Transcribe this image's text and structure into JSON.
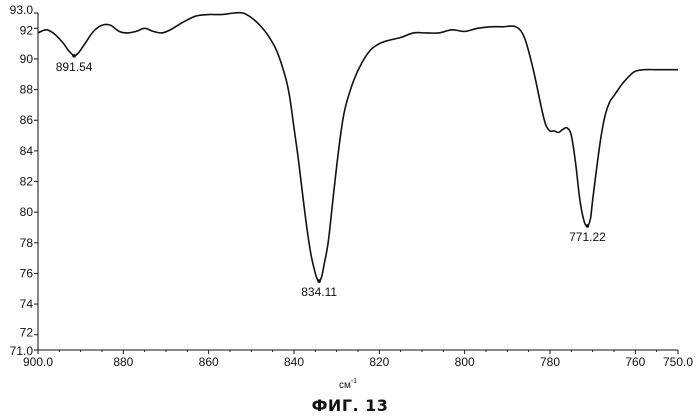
{
  "chart_data": {
    "type": "line",
    "xlabel": "см",
    "xlabel_sup": "-1",
    "caption": "ФИГ. 13",
    "xlim": [
      900.0,
      750.0
    ],
    "ylim": [
      71.0,
      93.0
    ],
    "x_reversed": true,
    "x_ticks": [
      "900.0",
      "880",
      "860",
      "840",
      "820",
      "800",
      "780",
      "760",
      "750.0"
    ],
    "y_ticks": [
      "71.0",
      "72",
      "74",
      "76",
      "78",
      "80",
      "82",
      "84",
      "86",
      "88",
      "90",
      "92",
      "93.0"
    ],
    "grid": false,
    "series": [
      {
        "x": [
          900.0,
          898.0,
          896.0,
          894.0,
          893.0,
          892.0,
          891.54,
          890.5,
          889.0,
          887.0,
          885.0,
          883.0,
          881.0,
          879.0,
          877.0,
          875.0,
          873.0,
          871.0,
          869.0,
          866.0,
          863.0,
          860.0,
          857.0,
          854.0,
          852.0,
          850.0,
          848.0,
          846.0,
          844.0,
          842.0,
          841.0,
          840.0,
          839.0,
          838.0,
          837.0,
          836.0,
          835.0,
          834.5,
          834.11,
          833.5,
          833.0,
          832.0,
          831.0,
          830.0,
          829.0,
          828.0,
          826.0,
          824.0,
          822.0,
          820.0,
          818.0,
          815.0,
          812.0,
          809.0,
          806.0,
          803.0,
          800.0,
          797.0,
          794.0,
          791.0,
          788.0,
          786.0,
          784.0,
          782.0,
          781.0,
          780.0,
          779.0,
          778.0,
          777.0,
          776.0,
          775.0,
          774.0,
          773.0,
          772.0,
          771.22,
          770.5,
          770.0,
          769.0,
          768.0,
          767.0,
          766.0,
          765.0,
          763.0,
          761.0,
          760.0,
          758.0,
          755.0,
          752.0,
          750.0
        ],
        "y": [
          91.7,
          91.9,
          91.6,
          91.0,
          90.6,
          90.3,
          90.2,
          90.4,
          91.0,
          91.8,
          92.2,
          92.2,
          91.8,
          91.7,
          91.8,
          92.0,
          91.8,
          91.7,
          91.9,
          92.4,
          92.8,
          92.9,
          92.9,
          93.0,
          93.0,
          92.7,
          92.2,
          91.5,
          90.5,
          88.8,
          87.5,
          85.5,
          83.5,
          81.2,
          79.0,
          77.2,
          76.0,
          75.6,
          75.5,
          75.8,
          76.5,
          78.0,
          80.5,
          83.0,
          85.2,
          86.8,
          88.6,
          89.8,
          90.6,
          91.0,
          91.2,
          91.4,
          91.7,
          91.7,
          91.7,
          91.9,
          91.8,
          92.0,
          92.1,
          92.1,
          92.1,
          91.4,
          89.4,
          86.8,
          85.7,
          85.3,
          85.3,
          85.2,
          85.4,
          85.5,
          85.0,
          83.2,
          80.8,
          79.4,
          79.1,
          79.6,
          80.8,
          83.0,
          85.0,
          86.4,
          87.2,
          87.6,
          88.4,
          89.0,
          89.2,
          89.3,
          89.3,
          89.3,
          89.3
        ]
      }
    ],
    "annotations": [
      {
        "x": 891.54,
        "y": 90.2,
        "text": "891.54"
      },
      {
        "x": 834.11,
        "y": 75.5,
        "text": "834.11"
      },
      {
        "x": 771.22,
        "y": 79.1,
        "text": "771.22"
      }
    ]
  }
}
